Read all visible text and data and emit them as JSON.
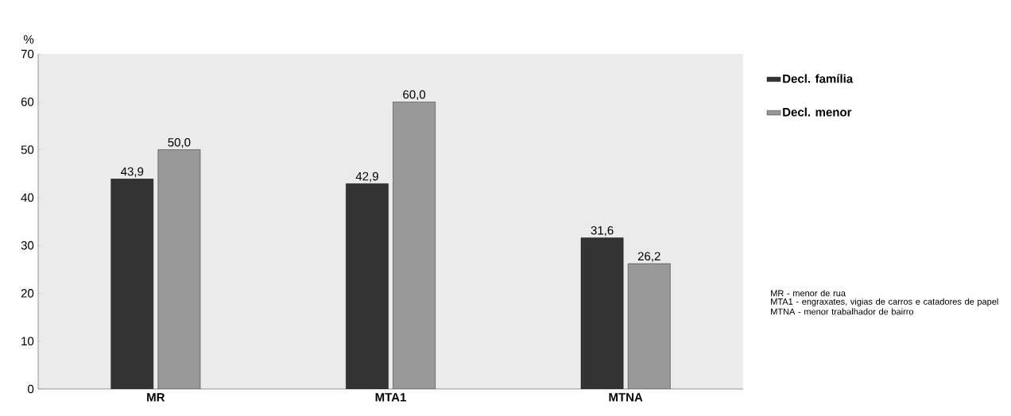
{
  "chart_data": {
    "type": "bar",
    "ylabel": "%",
    "categories": [
      "MR",
      "MTA1",
      "MTNA"
    ],
    "series": [
      {
        "name": "Decl. família",
        "color": "#333333",
        "values": [
          43.9,
          42.9,
          31.6
        ],
        "value_labels": [
          "43,9",
          "42,9",
          "31,6"
        ]
      },
      {
        "name": "Decl. menor",
        "color": "#999999",
        "values": [
          50.0,
          60.0,
          26.2
        ],
        "value_labels": [
          "50,0",
          "60,0",
          "26,2"
        ]
      }
    ],
    "ylim": [
      0,
      70
    ],
    "yticks": [
      0,
      10,
      20,
      30,
      40,
      50,
      60,
      70
    ],
    "grid": false,
    "legend": "right",
    "annotations": [
      "MR - menor de rua",
      "MTA1 - engraxates, vigias de carros e catadores de papel",
      "MTNA - menor trabalhador de bairro"
    ]
  }
}
